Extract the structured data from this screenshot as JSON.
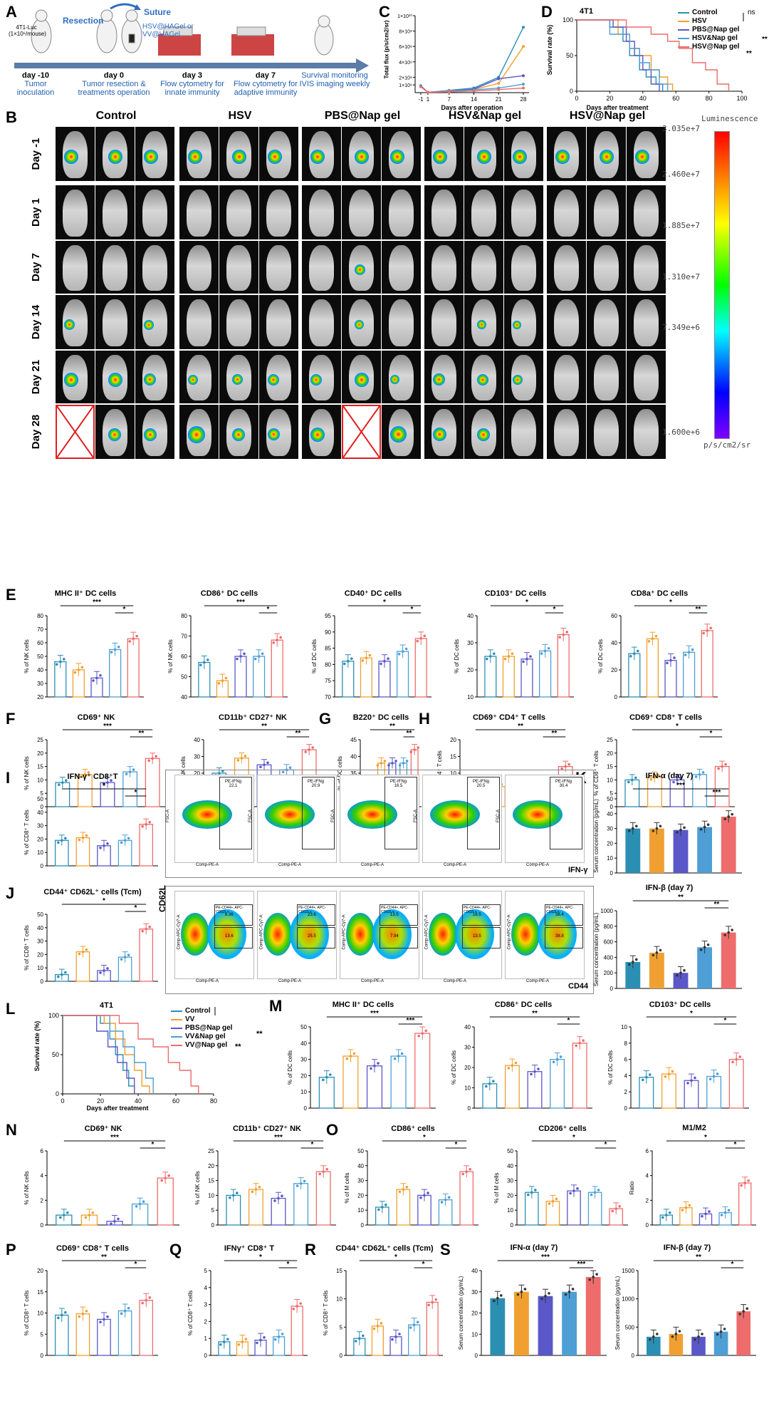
{
  "panelA": {
    "label": "A",
    "cell_text": "4T1-Luc\n(1×10⁶/mouse)",
    "resection": "Resection",
    "suture": "Suture",
    "gel": "HSV@HAGel or\nVV@HAGel",
    "timeline": [
      {
        "day": "day -10",
        "desc": "Tumor\ninoculation"
      },
      {
        "day": "day 0",
        "desc": "Tumor resection &\ntreatments operation"
      },
      {
        "day": "day 3",
        "desc": "Flow cytometry for\ninnate immunity"
      },
      {
        "day": "day 7",
        "desc": "Flow cytometry for\nadaptive immunity"
      },
      {
        "day": "",
        "desc": "Survival monitoring\nIVIS imaging weekly"
      }
    ]
  },
  "panelC": {
    "label": "C",
    "ylabel": "Total flux (p/s/cm2/sr)",
    "xlabel": "Days after operation",
    "yticks": [
      "1×10⁹",
      "2×10⁹",
      "4×10⁹",
      "6×10⁹",
      "8×10⁹",
      "1×10¹⁰"
    ],
    "xticks": [
      "-1",
      "1",
      "7",
      "14",
      "21",
      "28"
    ]
  },
  "panelD": {
    "label": "D",
    "title": "4T1",
    "ylabel": "Survival rate (%)",
    "xlabel": "Days after treatment",
    "legend": [
      "Control",
      "HSV",
      "PBS@Nap gel",
      "HSV&Nap gel",
      "HSV@Nap gel"
    ],
    "sig": [
      "ns",
      "**",
      "**"
    ],
    "yticks": [
      "0",
      "50",
      "100"
    ],
    "xticks": [
      "0",
      "20",
      "40",
      "60",
      "80",
      "100"
    ]
  },
  "panelB": {
    "label": "B",
    "groups": [
      "Control",
      "HSV",
      "PBS@Nap gel",
      "HSV&Nap gel",
      "HSV@Nap gel"
    ],
    "days": [
      "Day -1",
      "Day 1",
      "Day 7",
      "Day 14",
      "Day 21",
      "Day 28"
    ],
    "colorbar_title": "Luminescence",
    "colorbar_ticks": [
      "3.035e+7",
      "2.460e+7",
      "1.885e+7",
      "1.310e+7",
      "7.349e+6",
      "1.600e+6"
    ],
    "colorbar_unit": "p/s/cm2/sr"
  },
  "colors": {
    "control": "#2b8fb4",
    "hsv": "#f0a030",
    "pbs": "#5a57c8",
    "combo": "#4d9fd6",
    "best": "#ee6c6c"
  },
  "bar_panels": [
    {
      "label": "E",
      "title": "MHC II⁺ DC cells",
      "ylabel": "% of NK cells",
      "yticks": [
        "20",
        "30",
        "40",
        "50",
        "60",
        "70",
        "80"
      ],
      "values": [
        46,
        40,
        34,
        55,
        63
      ],
      "sig": [
        "***",
        "*"
      ]
    },
    {
      "label": "",
      "title": "CD86⁺ DC cells",
      "ylabel": "% of NK cells",
      "yticks": [
        "40",
        "50",
        "60",
        "70",
        "80"
      ],
      "values": [
        57,
        48,
        60,
        60,
        68
      ],
      "sig": [
        "***",
        "*"
      ]
    },
    {
      "label": "",
      "title": "CD40⁺ DC cells",
      "ylabel": "% of DC cells",
      "yticks": [
        "70",
        "75",
        "80",
        "85",
        "90",
        "95"
      ],
      "values": [
        81,
        82,
        81,
        84,
        88
      ],
      "sig": [
        "*",
        "*"
      ]
    },
    {
      "label": "",
      "title": "CD103⁺ DC cells",
      "ylabel": "% of DC cells",
      "yticks": [
        "10",
        "20",
        "30",
        "40"
      ],
      "values": [
        25,
        25,
        24,
        27,
        33
      ],
      "sig": [
        "*",
        "*"
      ]
    },
    {
      "label": "",
      "title": "CD8a⁺ DC cells",
      "ylabel": "% of DC cells",
      "yticks": [
        "0",
        "20",
        "40",
        "60"
      ],
      "values": [
        32,
        43,
        27,
        33,
        49
      ],
      "sig": [
        "*",
        "**"
      ]
    },
    {
      "label": "F",
      "title": "CD69⁺ NK",
      "ylabel": "% of NK cells",
      "yticks": [
        "0",
        "5",
        "10",
        "15",
        "20",
        "25"
      ],
      "values": [
        9,
        12,
        9,
        13,
        18
      ],
      "sig": [
        "***",
        "**"
      ]
    },
    {
      "label": "",
      "title": "CD11b⁺ CD27⁺ NK",
      "ylabel": "% of NK cells",
      "yticks": [
        "0",
        "10",
        "20",
        "30",
        "40"
      ],
      "values": [
        20,
        29,
        25,
        22,
        34
      ],
      "sig": [
        "**",
        "**"
      ]
    },
    {
      "label": "G",
      "title": "B220⁺ DC cells",
      "ylabel": "% of DC cells",
      "yticks": [
        "25",
        "30",
        "35",
        "40",
        "45"
      ],
      "values": [
        31,
        38,
        38,
        38,
        42
      ],
      "sig": [
        "**",
        "**"
      ]
    },
    {
      "label": "H",
      "title": "CD69⁺ CD4⁺ T cells",
      "ylabel": "% of CD4⁺ T cells",
      "yticks": [
        "0",
        "5",
        "10",
        "15",
        "20"
      ],
      "values": [
        7,
        6,
        6,
        7,
        12
      ],
      "sig": [
        "**",
        "**"
      ]
    },
    {
      "label": "",
      "title": "CD69⁺ CD8⁺ T cells",
      "ylabel": "% of CD8⁺ T cells",
      "yticks": [
        "0",
        "5",
        "10",
        "15",
        "20",
        "25"
      ],
      "values": [
        10,
        11,
        10,
        12,
        15
      ],
      "sig": [
        "*",
        "*"
      ]
    },
    {
      "label": "I",
      "title": "IFN-γ⁺ CD8⁺T",
      "ylabel": "% of CD8⁺ T cells",
      "yticks": [
        "0",
        "10",
        "20",
        "30",
        "40",
        "50"
      ],
      "values": [
        19,
        21,
        15,
        19,
        31
      ],
      "sig": [
        "*",
        "*"
      ]
    },
    {
      "label": "K",
      "title": "IFN-α (day 7)",
      "ylabel": "Serum concentration (pg/mL)",
      "yticks": [
        "0",
        "10",
        "20",
        "30",
        "40",
        "50"
      ],
      "values": [
        30,
        30,
        29,
        31,
        38
      ],
      "sig": [
        "***",
        "***"
      ],
      "style": "solid"
    },
    {
      "label": "J",
      "title": "CD44⁺ CD62L⁺ cells (Tcm)",
      "ylabel": "% of CD8⁺ T cells",
      "yticks": [
        "0",
        "10",
        "20",
        "30",
        "40",
        "50"
      ],
      "values": [
        5,
        22,
        8,
        18,
        39
      ],
      "sig": [
        "*",
        "*"
      ]
    },
    {
      "label": "",
      "title": "IFN-β (day 7)",
      "ylabel": "Serum concentration (pg/mL)",
      "yticks": [
        "0",
        "200",
        "400",
        "600",
        "800",
        "1000"
      ],
      "values": [
        340,
        460,
        200,
        530,
        720
      ],
      "sig": [
        "**",
        "**"
      ],
      "style": "solid"
    },
    {
      "label": "M",
      "title": "MHC II⁺ DC cells",
      "ylabel": "% of DC cells",
      "yticks": [
        "0",
        "10",
        "20",
        "30",
        "40",
        "50"
      ],
      "values": [
        19,
        32,
        26,
        32,
        46
      ],
      "sig": [
        "***",
        "***"
      ]
    },
    {
      "label": "",
      "title": "CD86⁺ DC cells",
      "ylabel": "% of DC cells",
      "yticks": [
        "0",
        "10",
        "20",
        "30",
        "40"
      ],
      "values": [
        12,
        21,
        18,
        24,
        32
      ],
      "sig": [
        "**",
        "*"
      ]
    },
    {
      "label": "",
      "title": "CD103⁺ DC cells",
      "ylabel": "% of DC cells",
      "yticks": [
        "0",
        "2",
        "4",
        "6",
        "8",
        "10"
      ],
      "values": [
        3.8,
        4.2,
        3.4,
        3.9,
        6
      ],
      "sig": [
        "*",
        "*"
      ]
    },
    {
      "label": "N",
      "title": "CD69⁺ NK",
      "ylabel": "% of NK cells",
      "yticks": [
        "0",
        "2",
        "4",
        "6"
      ],
      "values": [
        0.8,
        0.8,
        0.3,
        1.7,
        3.8
      ],
      "sig": [
        "***",
        "*"
      ]
    },
    {
      "label": "",
      "title": "CD11b⁺ CD27⁺ NK",
      "ylabel": "% of NK cells",
      "yticks": [
        "0",
        "5",
        "10",
        "15",
        "20",
        "25"
      ],
      "values": [
        10,
        12,
        9,
        14,
        18
      ],
      "sig": [
        "***",
        "*"
      ]
    },
    {
      "label": "O",
      "title": "CD86⁺ cells",
      "ylabel": "% of M cells",
      "yticks": [
        "0",
        "10",
        "20",
        "30",
        "40",
        "50"
      ],
      "values": [
        12,
        24,
        20,
        17,
        36
      ],
      "sig": [
        "*",
        "*"
      ]
    },
    {
      "label": "",
      "title": "CD206⁺ cells",
      "ylabel": "% of M cells",
      "yticks": [
        "0",
        "10",
        "20",
        "30",
        "40",
        "50"
      ],
      "values": [
        22,
        16,
        23,
        22,
        11
      ],
      "sig": [
        "*",
        "*"
      ]
    },
    {
      "label": "",
      "title": "M1/M2",
      "ylabel": "Ratio",
      "yticks": [
        "0",
        "2",
        "4",
        "6"
      ],
      "values": [
        0.8,
        1.4,
        0.9,
        1.0,
        3.4
      ],
      "sig": [
        "*",
        "*"
      ]
    },
    {
      "label": "P",
      "title": "CD69⁺ CD8⁺ T cells",
      "ylabel": "% of CD8⁺ T cells",
      "yticks": [
        "0",
        "5",
        "10",
        "15",
        "20"
      ],
      "values": [
        9.5,
        9.8,
        8.5,
        10.5,
        13
      ],
      "sig": [
        "**",
        "*"
      ]
    },
    {
      "label": "Q",
      "title": "IFNγ⁺ CD8⁺ T",
      "ylabel": "% of CD8⁺ T cells",
      "yticks": [
        "0",
        "1",
        "2",
        "3",
        "4",
        "5"
      ],
      "values": [
        0.8,
        0.8,
        0.9,
        1.1,
        2.9
      ],
      "sig": [
        "*",
        "*"
      ]
    },
    {
      "label": "R",
      "title": "CD44⁺ CD62L⁺ cells (Tcm)",
      "ylabel": "% of CD8⁺ T cells",
      "yticks": [
        "0",
        "5",
        "10",
        "15"
      ],
      "values": [
        3,
        5.2,
        3.3,
        5.4,
        9.4
      ],
      "sig": [
        "*",
        "*"
      ]
    },
    {
      "label": "S",
      "title": "IFN-α (day 7)",
      "ylabel": "Serum concentration (pg/mL)",
      "yticks": [
        "0",
        "10",
        "20",
        "30",
        "40"
      ],
      "values": [
        27,
        30,
        28,
        30,
        37
      ],
      "sig": [
        "***",
        "***"
      ],
      "style": "solid"
    },
    {
      "label": "",
      "title": "IFN-β (day 7)",
      "ylabel": "Serum concentration (pg/mL)",
      "yticks": [
        "0",
        "500",
        "1000",
        "1500"
      ],
      "values": [
        330,
        380,
        330,
        420,
        780
      ],
      "sig": [
        "**",
        "*"
      ],
      "style": "solid"
    }
  ],
  "flowI": {
    "label_axis": "IFN-γ",
    "gates": [
      "PE-IFNg\n22.1",
      "PE-IFNg\n20.9",
      "PE-IFNg\n16.5",
      "PE-IFNg\n20.5",
      "PE-IFNg\n30.4"
    ],
    "xaxis": "Comp-PE-A",
    "yaxis": "FSC-A"
  },
  "flowJ": {
    "yaxis_label": "CD62L",
    "xaxis_label": "CD44",
    "xaxis": "Comp-PE-A",
    "yaxis": "Comp-APC-Cy7-A",
    "gates": [
      [
        "PE-CD44+, APC-CD62L+",
        "8.36",
        "13.6"
      ],
      [
        "PE-CD44+, APC-CD62L+",
        "23.6",
        "25.5"
      ],
      [
        "PE-CD44+, APC-CD62L+",
        "13.5",
        "7.94"
      ],
      [
        "PE-CD44+, APC-CD62L+",
        "16.5",
        "13.5"
      ],
      [
        "PE-CD44+, APC-CD62L+",
        "38.4",
        "38.8"
      ]
    ]
  },
  "panelL": {
    "label": "L",
    "title": "4T1",
    "ylabel": "Survival rate (%)",
    "xlabel": "Days after treatment",
    "legend": [
      "Control",
      "VV",
      "PBS@Nap gel",
      "VV&Nap gel",
      "VV@Nap gel"
    ],
    "sig": [
      "**",
      "**"
    ],
    "yticks": [
      "0",
      "50",
      "100"
    ],
    "xticks": [
      "0",
      "20",
      "40",
      "60",
      "80"
    ]
  },
  "chart_data": [
    {
      "type": "line",
      "title": "",
      "xlabel": "Days after operation",
      "ylabel": "Total flux (p/s/cm2/sr)",
      "x": [
        -1,
        1,
        7,
        14,
        21,
        28
      ],
      "series": [
        {
          "values": [
            0.9,
            0.05,
            0.3,
            0.6,
            2.0,
            8.5
          ]
        },
        {
          "values": [
            0.8,
            0.05,
            0.25,
            0.4,
            1.2,
            6.0
          ]
        },
        {
          "values": [
            0.85,
            0.05,
            0.2,
            0.45,
            1.8,
            2.2
          ]
        },
        {
          "values": [
            0.8,
            0.05,
            0.2,
            0.35,
            0.6,
            1.1
          ]
        },
        {
          "values": [
            0.75,
            0.05,
            0.1,
            0.2,
            0.4,
            0.6
          ]
        }
      ]
    },
    {
      "type": "line",
      "title": "4T1",
      "xlabel": "Days after treatment",
      "ylabel": "Survival rate (%)",
      "xlim": [
        0,
        100
      ],
      "ylim": [
        0,
        100
      ],
      "series": [
        {
          "name": "Control",
          "x": [
            0,
            20,
            28,
            32,
            38,
            42,
            48,
            52
          ],
          "values": [
            100,
            90,
            70,
            50,
            30,
            20,
            10,
            0
          ]
        },
        {
          "name": "HSV",
          "x": [
            0,
            25,
            32,
            38,
            45,
            50,
            55,
            58
          ],
          "values": [
            100,
            80,
            60,
            50,
            30,
            20,
            10,
            0
          ]
        },
        {
          "name": "PBS@Nap gel",
          "x": [
            0,
            22,
            30,
            35,
            40,
            45,
            50
          ],
          "values": [
            100,
            90,
            70,
            50,
            30,
            10,
            0
          ]
        },
        {
          "name": "HSV&Nap gel",
          "x": [
            0,
            20,
            32,
            38,
            44,
            50,
            55
          ],
          "values": [
            100,
            80,
            60,
            40,
            30,
            10,
            0
          ]
        },
        {
          "name": "HSV@Nap gel",
          "x": [
            0,
            30,
            45,
            55,
            62,
            70,
            78,
            85,
            92
          ],
          "values": [
            100,
            90,
            80,
            70,
            60,
            40,
            30,
            10,
            0
          ]
        }
      ]
    },
    {
      "type": "line",
      "title": "4T1",
      "xlabel": "Days after treatment",
      "ylabel": "Survival rate (%)",
      "xlim": [
        0,
        80
      ],
      "ylim": [
        0,
        100
      ],
      "series": [
        {
          "name": "Control",
          "x": [
            0,
            20,
            25,
            28,
            32,
            35,
            38
          ],
          "values": [
            100,
            90,
            70,
            50,
            30,
            10,
            0
          ]
        },
        {
          "name": "VV",
          "x": [
            0,
            22,
            28,
            33,
            38,
            42,
            46
          ],
          "values": [
            100,
            90,
            70,
            50,
            30,
            10,
            0
          ]
        },
        {
          "name": "PBS@Nap gel",
          "x": [
            0,
            18,
            24,
            29,
            34,
            38
          ],
          "values": [
            100,
            80,
            60,
            40,
            20,
            0
          ]
        },
        {
          "name": "VV&Nap gel",
          "x": [
            0,
            25,
            32,
            38,
            44,
            48
          ],
          "values": [
            100,
            80,
            60,
            40,
            20,
            0
          ]
        },
        {
          "name": "VV@Nap gel",
          "x": [
            0,
            30,
            40,
            48,
            56,
            62,
            68,
            72
          ],
          "values": [
            100,
            90,
            70,
            60,
            40,
            30,
            10,
            0
          ]
        }
      ]
    }
  ]
}
